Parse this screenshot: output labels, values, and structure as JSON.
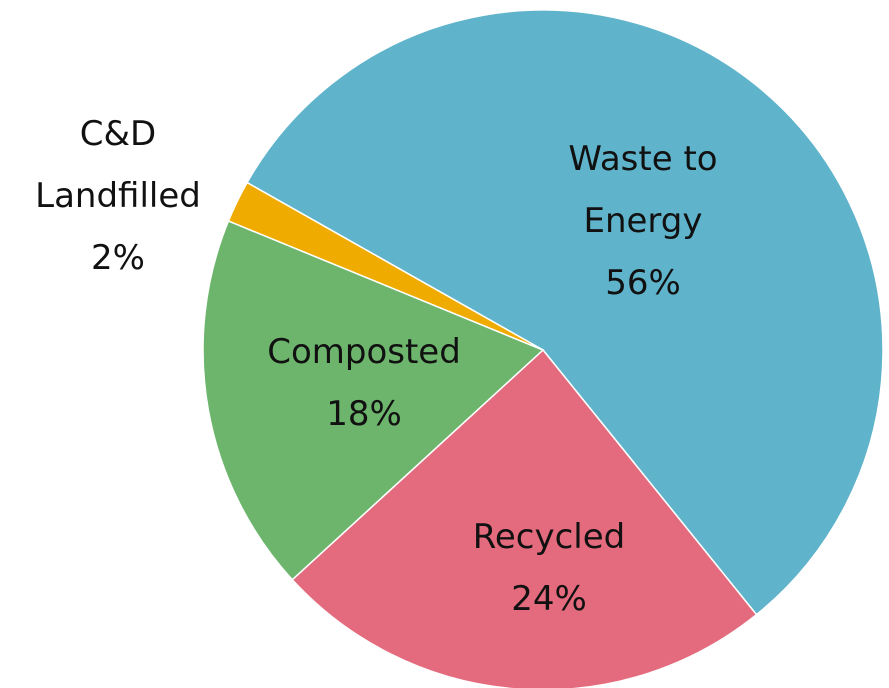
{
  "chart_data": {
    "type": "pie",
    "title": "",
    "slices": [
      {
        "label": "Waste to Energy",
        "label_lines": [
          "Waste to",
          "Energy"
        ],
        "percent_text": "56%",
        "value": 56,
        "color": "#5fb3cb"
      },
      {
        "label": "Recycled",
        "label_lines": [
          "Recycled"
        ],
        "percent_text": "24%",
        "value": 24,
        "color": "#e46b7d"
      },
      {
        "label": "Composted",
        "label_lines": [
          "Composted"
        ],
        "percent_text": "18%",
        "value": 18,
        "color": "#6db56c"
      },
      {
        "label": "C&D Landfilled",
        "label_lines": [
          "C&D",
          "Landfilled"
        ],
        "percent_text": "2%",
        "value": 2,
        "color": "#f0ab00"
      }
    ],
    "legend": "none",
    "labels_placement": "on-slice, except smallest slice outside"
  }
}
